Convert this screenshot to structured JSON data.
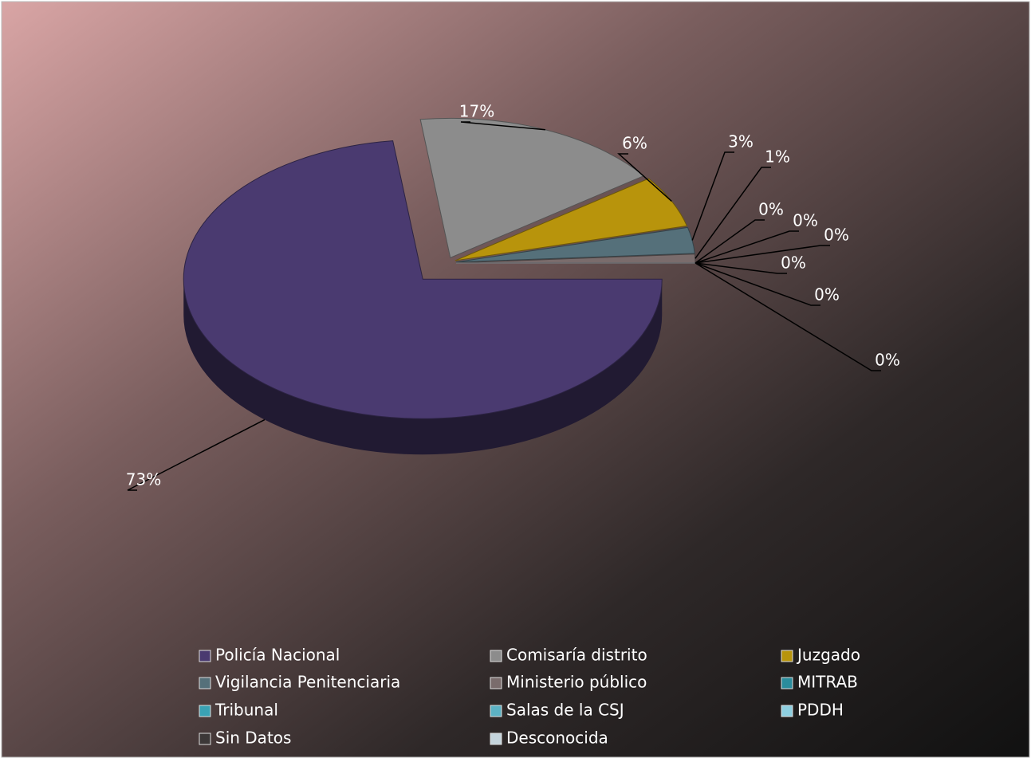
{
  "chart_data": {
    "type": "pie3d",
    "categories": [
      "Policía Nacional",
      "Comisaría distrito",
      "Juzgado",
      "Vigilancia Penitenciaria",
      "Ministerio público",
      "MITRAB",
      "Tribunal",
      "Salas de la CSJ",
      "PDDH",
      "Sin Datos",
      "Desconocida"
    ],
    "values": [
      73,
      17,
      6,
      3,
      1,
      0,
      0,
      0,
      0,
      0,
      0
    ],
    "value_labels": [
      "73%",
      "17%",
      "6%",
      "3%",
      "1%",
      "0%",
      "0%",
      "0%",
      "0%",
      "0%",
      "0%"
    ],
    "colors": [
      "#4a3a70",
      "#8c8c8c",
      "#b8940c",
      "#55707a",
      "#7a6c6c",
      "#2a8c9c",
      "#3aa2b4",
      "#5cb2c4",
      "#8ecfe0",
      "#3c3838",
      "#c4d4dc"
    ],
    "legend": "bottom"
  }
}
